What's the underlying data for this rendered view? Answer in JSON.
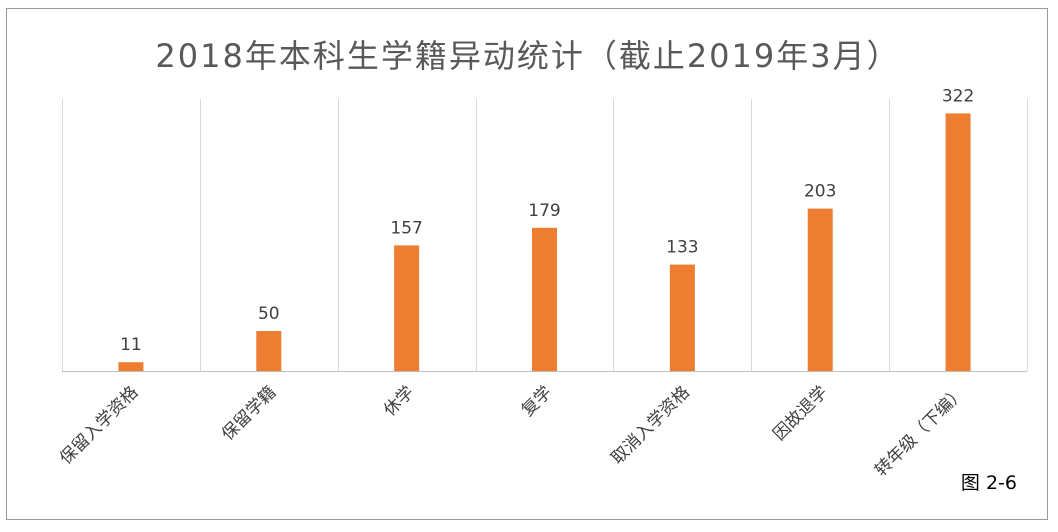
{
  "figure_label": "图 2-6",
  "chart_data": {
    "type": "bar",
    "title": "2018年本科生学籍异动统计（截止2019年3月）",
    "categories": [
      "保留入学资格",
      "保留学籍",
      "休学",
      "复学",
      "取消入学资格",
      "因故退学",
      "转年级（下编）"
    ],
    "values": [
      11,
      50,
      157,
      179,
      133,
      203,
      322
    ],
    "data_labels": [
      "11",
      "50",
      "157",
      "179",
      "133",
      "203",
      "322"
    ],
    "bar_color": "#ed7d31",
    "ylim": [
      0,
      340
    ],
    "grid": "vertical separators",
    "legend": "none",
    "xlabel": "",
    "ylabel": ""
  }
}
